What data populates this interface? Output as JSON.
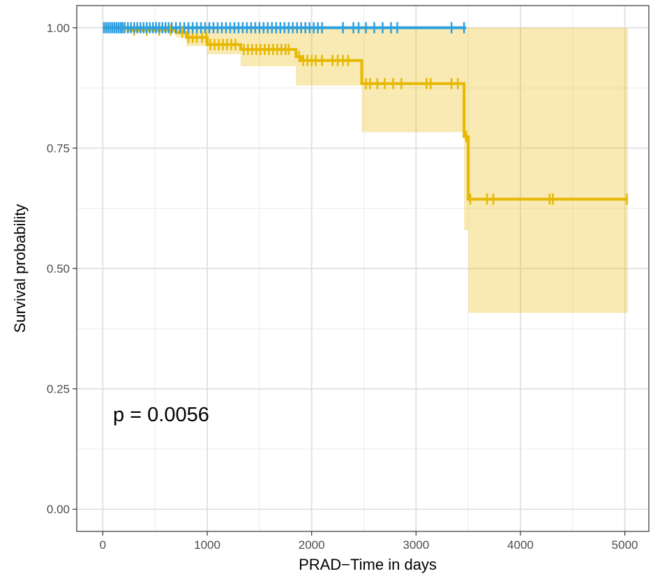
{
  "chart_data": {
    "type": "line",
    "subtype": "kaplan-meier",
    "title": "",
    "xlabel": "PRAD−Time in days",
    "ylabel": "Survival probability",
    "xlim": [
      -250,
      5230
    ],
    "ylim": [
      -0.046,
      1.046
    ],
    "x_ticks": [
      0,
      1000,
      2000,
      3000,
      4000,
      5000
    ],
    "x_tick_labels": [
      "0",
      "1000",
      "2000",
      "3000",
      "4000",
      "5000"
    ],
    "y_ticks": [
      0,
      0.25,
      0.5,
      0.75,
      1.0
    ],
    "y_tick_labels": [
      "0.00",
      "0.25",
      "0.50",
      "0.75",
      "1.00"
    ],
    "grid": true,
    "legend": "none",
    "annotation": "p = 0.0056",
    "series": [
      {
        "color": "#2e9fdf",
        "ci_color": "#2e9fdf",
        "steps": [
          [
            0,
            1.0
          ],
          [
            3480,
            1.0
          ]
        ],
        "ci": [],
        "censor_x": [
          10,
          30,
          50,
          70,
          90,
          110,
          130,
          150,
          170,
          190,
          210,
          240,
          270,
          300,
          330,
          360,
          390,
          420,
          450,
          480,
          510,
          540,
          570,
          600,
          630,
          660,
          700,
          740,
          780,
          820,
          860,
          900,
          940,
          980,
          1020,
          1060,
          1100,
          1140,
          1180,
          1220,
          1260,
          1300,
          1340,
          1380,
          1420,
          1460,
          1500,
          1540,
          1580,
          1620,
          1660,
          1700,
          1740,
          1780,
          1820,
          1860,
          1900,
          1940,
          1980,
          2020,
          2060,
          2100,
          2300,
          2400,
          2450,
          2520,
          2600,
          2680,
          2760,
          2820,
          3340,
          3460
        ]
      },
      {
        "color": "#e7b800",
        "ci_color": "#e7b800",
        "steps": [
          [
            0,
            1.0
          ],
          [
            240,
            0.995
          ],
          [
            700,
            0.99
          ],
          [
            800,
            0.98
          ],
          [
            1000,
            0.965
          ],
          [
            1320,
            0.955
          ],
          [
            1850,
            0.94
          ],
          [
            1900,
            0.932
          ],
          [
            2480,
            0.884
          ],
          [
            3460,
            0.774
          ],
          [
            3500,
            0.644
          ],
          [
            5030,
            0.644
          ]
        ],
        "ci": [
          [
            0,
            1.0,
            1.0
          ],
          [
            240,
            1.0,
            0.99
          ],
          [
            700,
            1.0,
            0.98
          ],
          [
            800,
            1.0,
            0.962
          ],
          [
            1000,
            1.0,
            0.945
          ],
          [
            1320,
            1.0,
            0.92
          ],
          [
            1850,
            1.0,
            0.88
          ],
          [
            2480,
            1.0,
            0.783
          ],
          [
            3460,
            1.0,
            0.58
          ],
          [
            3500,
            1.0,
            0.408
          ],
          [
            5030,
            1.0,
            0.408
          ]
        ],
        "censor_x": [
          180,
          300,
          420,
          540,
          650,
          760,
          820,
          860,
          900,
          950,
          990,
          1030,
          1070,
          1110,
          1150,
          1190,
          1230,
          1270,
          1350,
          1390,
          1430,
          1470,
          1510,
          1550,
          1590,
          1630,
          1670,
          1710,
          1750,
          1780,
          1880,
          1920,
          1960,
          2000,
          2040,
          2100,
          2200,
          2250,
          2300,
          2350,
          2520,
          2560,
          2630,
          2700,
          2780,
          2860,
          3100,
          3140,
          3340,
          3400,
          3480,
          3520,
          3680,
          3740,
          4280,
          4310,
          5020
        ]
      }
    ]
  }
}
